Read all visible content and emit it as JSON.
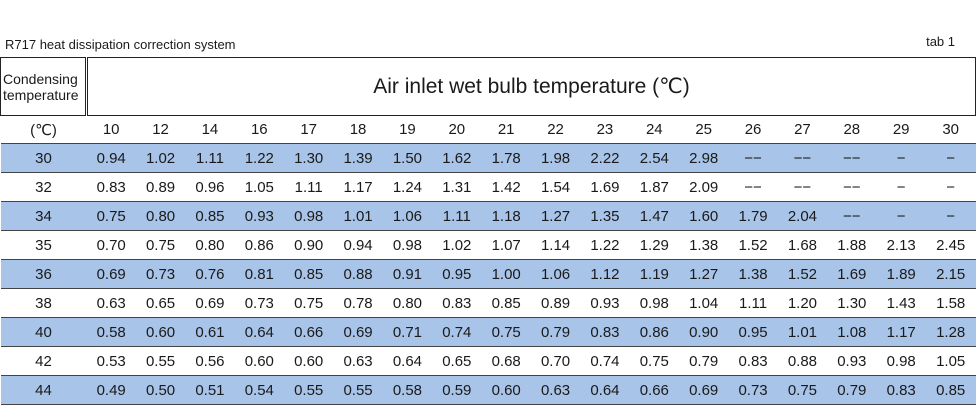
{
  "caption": "R717 heat dissipation correction system",
  "tab_label": "tab 1",
  "header": {
    "condensing": "Condensing temperature",
    "air_inlet": "Air inlet wet bulb temperature (℃)"
  },
  "unit_label": "(℃)",
  "columns": [
    "10",
    "12",
    "14",
    "16",
    "17",
    "18",
    "19",
    "20",
    "21",
    "22",
    "23",
    "24",
    "25",
    "26",
    "27",
    "28",
    "29",
    "30"
  ],
  "rows": [
    {
      "temp": "30",
      "values": [
        "0.94",
        "1.02",
        "1.11",
        "1.22",
        "1.30",
        "1.39",
        "1.50",
        "1.62",
        "1.78",
        "1.98",
        "2.22",
        "2.54",
        "2.98",
        "−−",
        "−−",
        "−−",
        "−",
        "−"
      ]
    },
    {
      "temp": "32",
      "values": [
        "0.83",
        "0.89",
        "0.96",
        "1.05",
        "1.11",
        "1.17",
        "1.24",
        "1.31",
        "1.42",
        "1.54",
        "1.69",
        "1.87",
        "2.09",
        "−−",
        "−−",
        "−−",
        "−",
        "−"
      ]
    },
    {
      "temp": "34",
      "values": [
        "0.75",
        "0.80",
        "0.85",
        "0.93",
        "0.98",
        "1.01",
        "1.06",
        "1.11",
        "1.18",
        "1.27",
        "1.35",
        "1.47",
        "1.60",
        "1.79",
        "2.04",
        "−−",
        "−",
        "−"
      ]
    },
    {
      "temp": "35",
      "values": [
        "0.70",
        "0.75",
        "0.80",
        "0.86",
        "0.90",
        "0.94",
        "0.98",
        "1.02",
        "1.07",
        "1.14",
        "1.22",
        "1.29",
        "1.38",
        "1.52",
        "1.68",
        "1.88",
        "2.13",
        "2.45"
      ]
    },
    {
      "temp": "36",
      "values": [
        "0.69",
        "0.73",
        "0.76",
        "0.81",
        "0.85",
        "0.88",
        "0.91",
        "0.95",
        "1.00",
        "1.06",
        "1.12",
        "1.19",
        "1.27",
        "1.38",
        "1.52",
        "1.69",
        "1.89",
        "2.15"
      ]
    },
    {
      "temp": "38",
      "values": [
        "0.63",
        "0.65",
        "0.69",
        "0.73",
        "0.75",
        "0.78",
        "0.80",
        "0.83",
        "0.85",
        "0.89",
        "0.93",
        "0.98",
        "1.04",
        "1.11",
        "1.20",
        "1.30",
        "1.43",
        "1.58"
      ]
    },
    {
      "temp": "40",
      "values": [
        "0.58",
        "0.60",
        "0.61",
        "0.64",
        "0.66",
        "0.69",
        "0.71",
        "0.74",
        "0.75",
        "0.79",
        "0.83",
        "0.86",
        "0.90",
        "0.95",
        "1.01",
        "1.08",
        "1.17",
        "1.28"
      ]
    },
    {
      "temp": "42",
      "values": [
        "0.53",
        "0.55",
        "0.56",
        "0.60",
        "0.60",
        "0.63",
        "0.64",
        "0.65",
        "0.68",
        "0.70",
        "0.74",
        "0.75",
        "0.79",
        "0.83",
        "0.88",
        "0.93",
        "0.98",
        "1.05"
      ]
    },
    {
      "temp": "44",
      "values": [
        "0.49",
        "0.50",
        "0.51",
        "0.54",
        "0.55",
        "0.55",
        "0.58",
        "0.59",
        "0.60",
        "0.63",
        "0.64",
        "0.66",
        "0.69",
        "0.73",
        "0.75",
        "0.79",
        "0.83",
        "0.85"
      ]
    }
  ],
  "colors": {
    "row_highlight": "#a8c4e8"
  }
}
